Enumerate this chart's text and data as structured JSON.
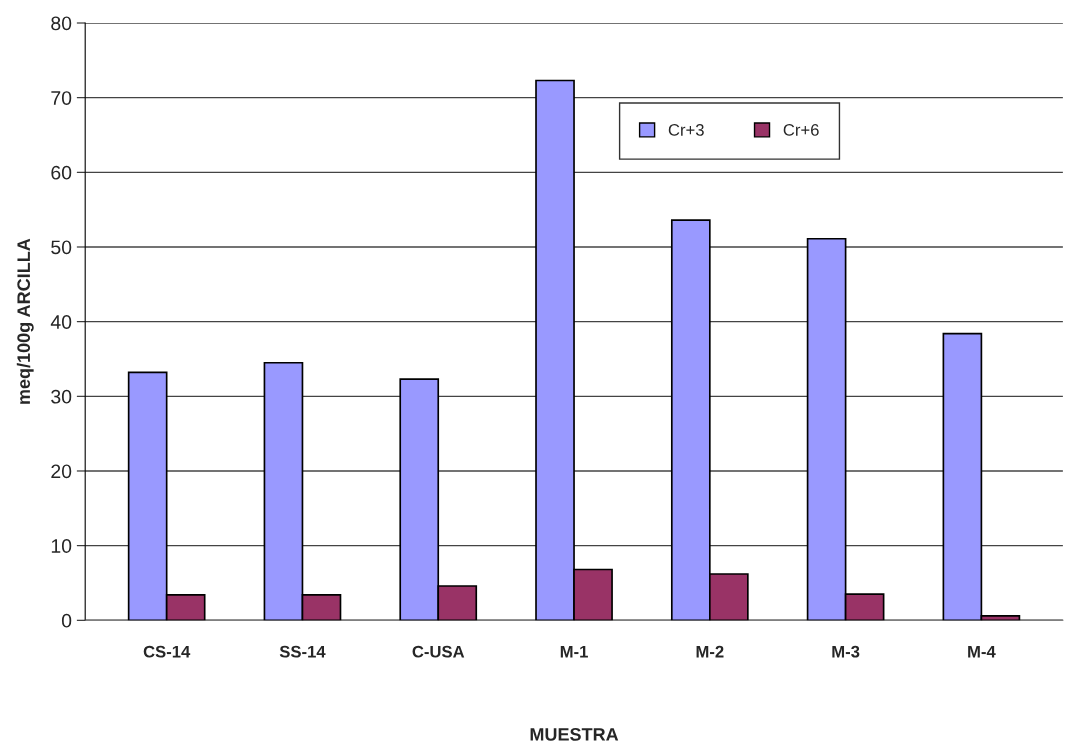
{
  "chart_data": {
    "type": "bar",
    "xlabel": "MUESTRA",
    "ylabel": "meq/100g ARCILLA",
    "categories": [
      "CS-14",
      "SS-14",
      "C-USA",
      "M-1",
      "M-2",
      "M-3",
      "M-4"
    ],
    "series": [
      {
        "name": "Cr+3",
        "color": "#9999ff",
        "values": [
          33.2,
          34.5,
          32.3,
          72.3,
          53.6,
          51.1,
          38.4
        ]
      },
      {
        "name": "Cr+6",
        "color": "#993366",
        "values": [
          3.4,
          3.4,
          4.6,
          6.8,
          6.2,
          3.5,
          0.6
        ]
      }
    ],
    "ylim": [
      0,
      80
    ],
    "yticks": [
      0,
      10,
      20,
      30,
      40,
      50,
      60,
      70,
      80
    ],
    "grid": "y",
    "legend": "top right"
  }
}
